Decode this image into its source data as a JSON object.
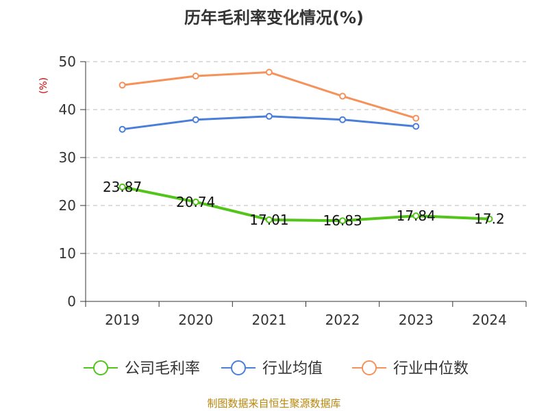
{
  "chart_data": {
    "type": "line",
    "title": "历年毛利率变化情况(%)",
    "unit": "(%)",
    "categories": [
      "2019",
      "2020",
      "2021",
      "2022",
      "2023",
      "2024"
    ],
    "ylim": [
      0,
      50
    ],
    "yticks": [
      0,
      10,
      20,
      30,
      40,
      50
    ],
    "grid": true,
    "legend_position": "bottom",
    "series": [
      {
        "name": "公司毛利率",
        "color": "#52c41a",
        "values": [
          23.87,
          20.74,
          17.01,
          16.83,
          17.84,
          17.2
        ],
        "labels": [
          "23.87",
          "20.74",
          "17.01",
          "16.83",
          "17.84",
          "17.2"
        ]
      },
      {
        "name": "行业均值",
        "color": "#4a7fd9",
        "values": [
          35.9,
          37.9,
          38.6,
          37.9,
          36.5,
          null
        ]
      },
      {
        "name": "行业中位数",
        "color": "#f5925a",
        "values": [
          45.1,
          47.0,
          47.8,
          42.8,
          38.2,
          null
        ]
      }
    ]
  },
  "source": "制图数据来自恒生聚源数据库"
}
